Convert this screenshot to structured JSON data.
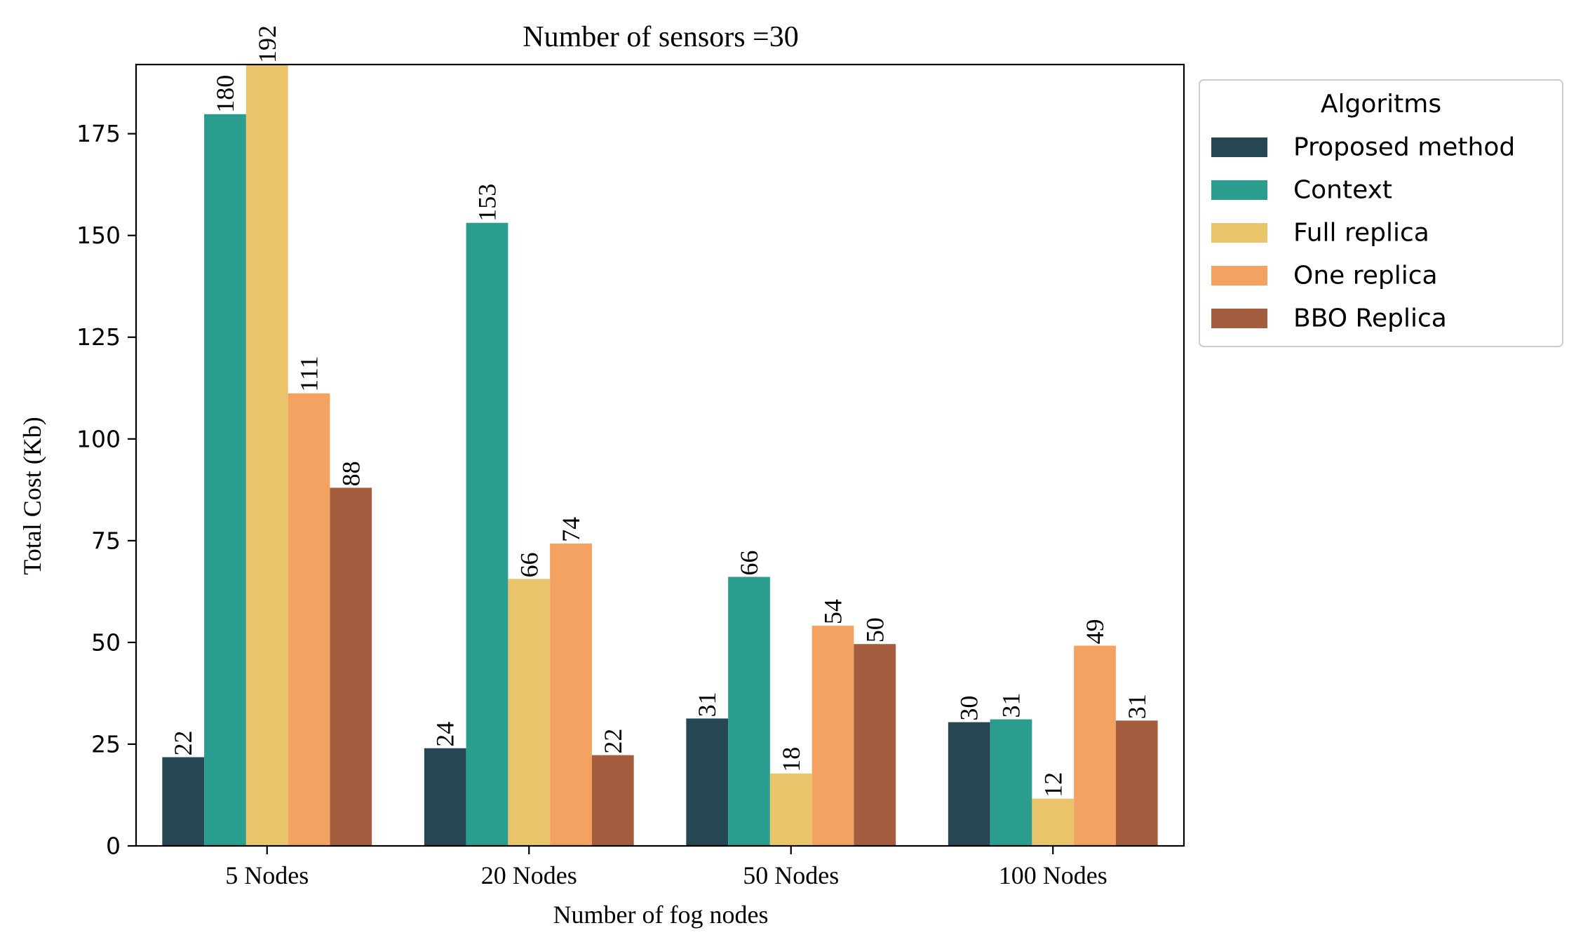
{
  "chart_data": {
    "type": "bar",
    "title": "Number of sensors =30",
    "xlabel": "Number of fog nodes",
    "ylabel": "Total Cost (Kb)",
    "ylim": [
      0,
      192
    ],
    "yticks": [
      0,
      25,
      50,
      75,
      100,
      125,
      150,
      175
    ],
    "categories": [
      "5 Nodes",
      "20 Nodes",
      "50 Nodes",
      "100 Nodes"
    ],
    "legend": {
      "title": "Algoritms",
      "placement": "outside-right-top"
    },
    "grid": false,
    "series": [
      {
        "name": "Proposed method",
        "color": "#264653",
        "values": [
          21.8,
          24.0,
          31.3,
          30.4
        ],
        "labels": [
          "22",
          "24",
          "31",
          "30"
        ]
      },
      {
        "name": "Context",
        "color": "#2a9d8f",
        "values": [
          179.8,
          153.1,
          66.1,
          31.1
        ],
        "labels": [
          "180",
          "153",
          "66",
          "31"
        ]
      },
      {
        "name": "Full replica",
        "color": "#e9c46a",
        "values": [
          192.0,
          65.6,
          17.8,
          11.6
        ],
        "labels": [
          "192",
          "66",
          "18",
          "12"
        ]
      },
      {
        "name": "One replica",
        "color": "#f4a261",
        "values": [
          111.2,
          74.3,
          54.1,
          49.2
        ],
        "labels": [
          "111",
          "74",
          "54",
          "49"
        ]
      },
      {
        "name": "BBO Replica",
        "color": "#a45e3f",
        "values": [
          88.0,
          22.3,
          49.6,
          30.8
        ],
        "labels": [
          "88",
          "22",
          "50",
          "31"
        ]
      }
    ]
  }
}
